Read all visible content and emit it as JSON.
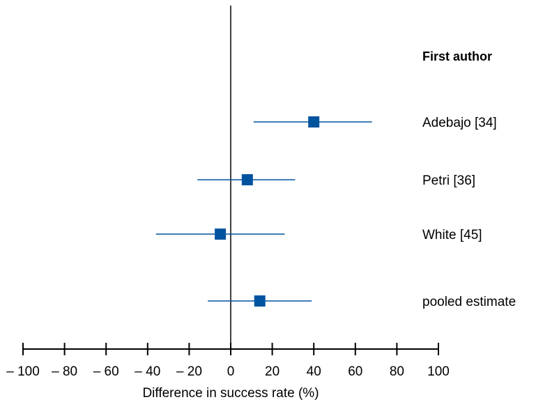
{
  "chart_data": {
    "type": "forest",
    "column_header": "First author",
    "xlabel": "Difference in success rate (%)",
    "xlim": [
      -100,
      100
    ],
    "xticks": [
      -100,
      -80,
      -60,
      -40,
      -20,
      0,
      20,
      40,
      60,
      80,
      100
    ],
    "xtick_labels": [
      "– 100",
      "– 80",
      "– 60",
      "– 40",
      "– 20",
      "0",
      "20",
      "40",
      "60",
      "80",
      "100"
    ],
    "reference_line": 0,
    "studies": [
      {
        "label": "Adebajo [34]",
        "estimate": 40,
        "ci_low": 11,
        "ci_high": 68
      },
      {
        "label": "Petri [36]",
        "estimate": 8,
        "ci_low": -16,
        "ci_high": 31
      },
      {
        "label": "White [45]",
        "estimate": -5,
        "ci_low": -36,
        "ci_high": 26
      },
      {
        "label": "pooled estimate",
        "estimate": 14,
        "ci_low": -11,
        "ci_high": 39
      }
    ],
    "marker_color": "#00539f"
  }
}
